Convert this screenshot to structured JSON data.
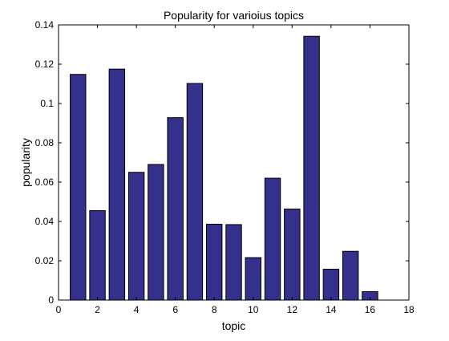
{
  "chart_data": {
    "type": "bar",
    "title": "Popularity for varioius topics",
    "xlabel": "topic",
    "ylabel": "popularity",
    "categories": [
      1,
      2,
      3,
      4,
      5,
      6,
      7,
      8,
      9,
      10,
      11,
      12,
      13,
      14,
      15,
      16
    ],
    "values": [
      0.1148,
      0.0455,
      0.1175,
      0.065,
      0.069,
      0.0928,
      0.1102,
      0.0386,
      0.0384,
      0.0216,
      0.062,
      0.0463,
      0.1342,
      0.0157,
      0.0248,
      0.0043
    ],
    "xlim": [
      0,
      18
    ],
    "ylim": [
      0,
      0.14
    ],
    "xticks": [
      "0",
      "2",
      "4",
      "6",
      "8",
      "10",
      "12",
      "14",
      "16",
      "18"
    ],
    "yticks": [
      "0",
      "0.02",
      "0.04",
      "0.06",
      "0.08",
      "0.1",
      "0.12",
      "0.14"
    ],
    "grid": false,
    "bar_color": "#35308c",
    "edge_color": "#000000"
  }
}
